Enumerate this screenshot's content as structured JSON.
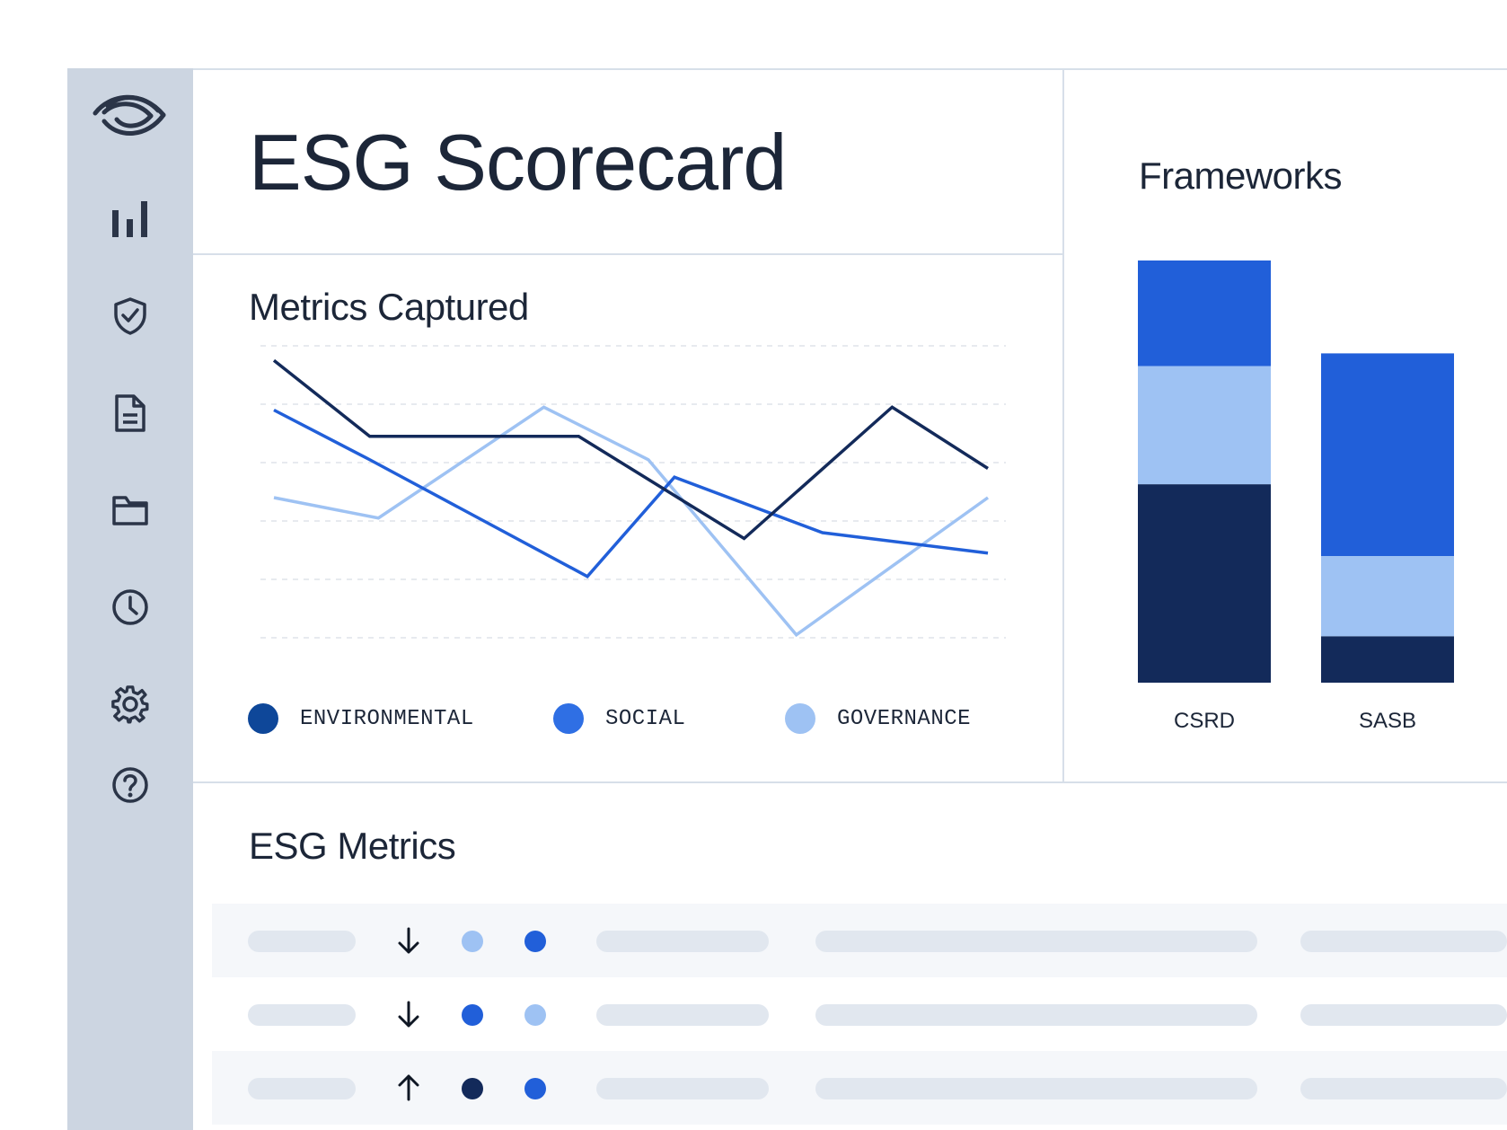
{
  "app": {
    "title": "ESG Scorecard"
  },
  "sidebar": {
    "items": [
      {
        "icon": "brand-logo-icon"
      },
      {
        "icon": "bar-chart-icon"
      },
      {
        "icon": "shield-check-icon"
      },
      {
        "icon": "document-icon"
      },
      {
        "icon": "folder-icon"
      },
      {
        "icon": "clock-icon"
      },
      {
        "icon": "gear-icon"
      },
      {
        "icon": "help-icon"
      }
    ]
  },
  "colors": {
    "environmental": "#0e4799",
    "social": "#2f6fe4",
    "governance": "#9ec2f3",
    "csrd_top": "#215fd9",
    "navy": "#132a5a"
  },
  "metrics_captured": {
    "title": "Metrics Captured",
    "chart_data": {
      "type": "line",
      "x": [
        0,
        1,
        2,
        3,
        4,
        5,
        6,
        7,
        8
      ],
      "ylim": [
        0,
        10
      ],
      "grid": true,
      "legend_position": "bottom",
      "series": [
        {
          "name": "ENVIRONMENTAL",
          "color": "#132a5a",
          "points": [
            [
              0,
              9.5
            ],
            [
              1.1,
              6.9
            ],
            [
              3.5,
              6.9
            ],
            [
              5.4,
              3.4
            ],
            [
              7.1,
              7.9
            ],
            [
              8.2,
              5.8
            ]
          ]
        },
        {
          "name": "SOCIAL",
          "color": "#215fd9",
          "points": [
            [
              0,
              7.8
            ],
            [
              1.1,
              6.1
            ],
            [
              3.6,
              2.1
            ],
            [
              4.6,
              5.5
            ],
            [
              6.3,
              3.6
            ],
            [
              8.2,
              2.9
            ]
          ]
        },
        {
          "name": "GOVERNANCE",
          "color": "#9ec2f3",
          "points": [
            [
              0,
              4.8
            ],
            [
              1.2,
              4.1
            ],
            [
              3.1,
              7.9
            ],
            [
              4.3,
              6.1
            ],
            [
              6.0,
              0.1
            ],
            [
              8.2,
              4.8
            ]
          ]
        }
      ]
    },
    "legend": [
      {
        "label": "ENVIRONMENTAL",
        "color": "#0e4799"
      },
      {
        "label": "SOCIAL",
        "color": "#2f6fe4"
      },
      {
        "label": "GOVERNANCE",
        "color": "#9ec2f3"
      }
    ]
  },
  "frameworks": {
    "title": "Frameworks",
    "chart_data": {
      "type": "bar",
      "stacked": true,
      "categories": [
        "CSRD",
        "SASB"
      ],
      "ylim": [
        0,
        10
      ],
      "series": [
        {
          "color": "#132a5a",
          "values": [
            4.7,
            1.1
          ]
        },
        {
          "color": "#9ec2f3",
          "values": [
            2.8,
            1.9
          ]
        },
        {
          "color": "#215fd9",
          "values": [
            2.5,
            4.8
          ]
        }
      ]
    }
  },
  "esg_metrics": {
    "title": "ESG Metrics",
    "rows": [
      {
        "trend": "down",
        "dot1": "#9ec2f3",
        "dot2": "#215fd9",
        "shaded": true
      },
      {
        "trend": "down",
        "dot1": "#215fd9",
        "dot2": "#9ec2f3",
        "shaded": false
      },
      {
        "trend": "up",
        "dot1": "#132a5a",
        "dot2": "#215fd9",
        "shaded": true
      }
    ]
  }
}
